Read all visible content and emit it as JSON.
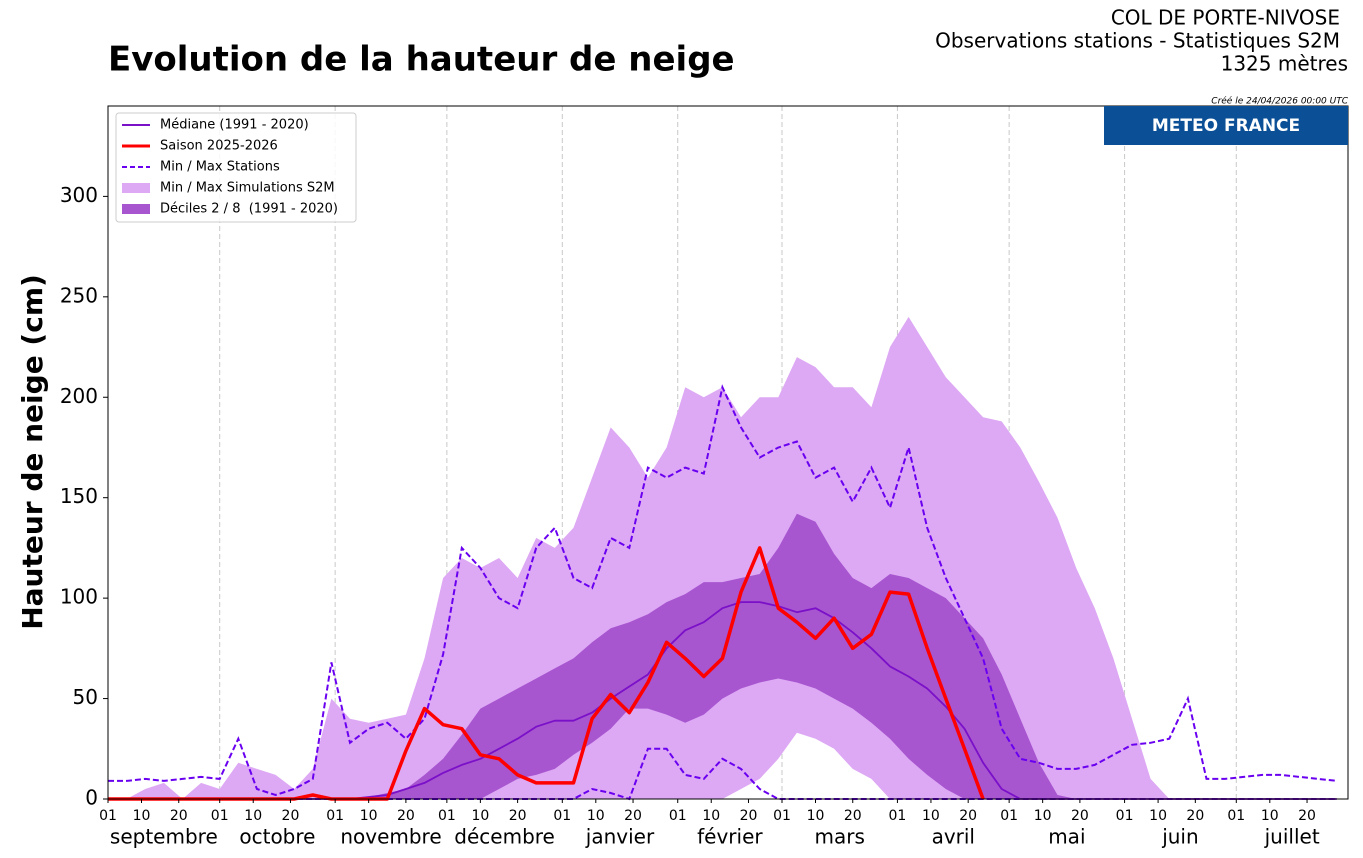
{
  "chart_data": {
    "type": "snow-envelope",
    "title": "Evolution de la hauteur de neige",
    "station": "COL DE PORTE-NIVOSE",
    "subtitle": "Observations stations - Statistiques S2M",
    "altitude": "1325 mètres",
    "created": "Créé le 24/04/2026 00:00 UTC",
    "brand": "METEO FRANCE",
    "y_label": "Hauteur de neige (cm)",
    "xlim": [
      0,
      333
    ],
    "ylim": [
      0,
      345
    ],
    "yticks": [
      0,
      50,
      100,
      150,
      200,
      250,
      300
    ],
    "xticks": [
      {
        "value": 0,
        "label": "01"
      },
      {
        "value": 9,
        "label": "10"
      },
      {
        "value": 19,
        "label": "20"
      },
      {
        "value": 30,
        "label": "01"
      },
      {
        "value": 39,
        "label": "10"
      },
      {
        "value": 49,
        "label": "20"
      },
      {
        "value": 61,
        "label": "01"
      },
      {
        "value": 70,
        "label": "10"
      },
      {
        "value": 80,
        "label": "20"
      },
      {
        "value": 91,
        "label": "01"
      },
      {
        "value": 100,
        "label": "10"
      },
      {
        "value": 110,
        "label": "20"
      },
      {
        "value": 122,
        "label": "01"
      },
      {
        "value": 131,
        "label": "10"
      },
      {
        "value": 141,
        "label": "20"
      },
      {
        "value": 153,
        "label": "01"
      },
      {
        "value": 162,
        "label": "10"
      },
      {
        "value": 172,
        "label": "20"
      },
      {
        "value": 181,
        "label": "01"
      },
      {
        "value": 190,
        "label": "10"
      },
      {
        "value": 200,
        "label": "20"
      },
      {
        "value": 212,
        "label": "01"
      },
      {
        "value": 221,
        "label": "10"
      },
      {
        "value": 231,
        "label": "20"
      },
      {
        "value": 242,
        "label": "01"
      },
      {
        "value": 251,
        "label": "10"
      },
      {
        "value": 261,
        "label": "20"
      },
      {
        "value": 273,
        "label": "01"
      },
      {
        "value": 282,
        "label": "10"
      },
      {
        "value": 292,
        "label": "20"
      },
      {
        "value": 303,
        "label": "01"
      },
      {
        "value": 312,
        "label": "10"
      },
      {
        "value": 322,
        "label": "20"
      }
    ],
    "month_labels": [
      "septembre",
      "octobre",
      "novembre",
      "décembre",
      "janvier",
      "février",
      "mars",
      "avril",
      "mai",
      "juin",
      "juillet"
    ],
    "x": [
      0,
      5,
      10,
      15,
      20,
      25,
      30,
      35,
      40,
      45,
      50,
      55,
      60,
      65,
      70,
      75,
      80,
      85,
      90,
      95,
      100,
      105,
      110,
      115,
      120,
      125,
      130,
      135,
      140,
      145,
      150,
      155,
      160,
      165,
      170,
      175,
      180,
      185,
      190,
      195,
      200,
      205,
      210,
      215,
      220,
      225,
      230,
      235,
      240,
      245,
      250,
      255,
      260,
      265,
      270,
      275,
      280,
      285,
      290,
      295,
      300,
      305,
      310,
      315,
      320,
      325,
      330
    ],
    "series": [
      {
        "name": "Médiane (1991 - 2020)",
        "color": "#7a10c8",
        "style": "line",
        "values": [
          0,
          0,
          0,
          0,
          0,
          0,
          0,
          0,
          0,
          0,
          0,
          0,
          0,
          0,
          1,
          2,
          5,
          8,
          13,
          17,
          20,
          25,
          30,
          36,
          39,
          39,
          43,
          50,
          56,
          62,
          75,
          84,
          88,
          95,
          98,
          98,
          96,
          93,
          95,
          90,
          83,
          75,
          66,
          61,
          55,
          46,
          35,
          18,
          5,
          0,
          0,
          0,
          0,
          0,
          0,
          0,
          0,
          0,
          0,
          0,
          0,
          0,
          0,
          0,
          0,
          0,
          0
        ]
      },
      {
        "name": "Saison 2025-2026",
        "color": "#ff0000",
        "style": "bold",
        "values": [
          0,
          0,
          0,
          0,
          0,
          0,
          0,
          0,
          0,
          0,
          0,
          2,
          0,
          0,
          0,
          0,
          24,
          45,
          37,
          35,
          22,
          20,
          12,
          8,
          8,
          8,
          40,
          52,
          43,
          58,
          78,
          70,
          61,
          70,
          103,
          125,
          95,
          88,
          80,
          90,
          75,
          82,
          103,
          102,
          75,
          50,
          25,
          0,
          null,
          null,
          null,
          null,
          null,
          null,
          null,
          null,
          null,
          null,
          null,
          null,
          null,
          null,
          null,
          null,
          null,
          null,
          null
        ]
      },
      {
        "name": "Min / Max Stations",
        "color": "#6a00f0",
        "style": "dashed",
        "lower": [
          0,
          0,
          0,
          0,
          0,
          0,
          0,
          0,
          0,
          0,
          0,
          0,
          0,
          0,
          0,
          0,
          0,
          0,
          0,
          0,
          0,
          0,
          0,
          0,
          0,
          0,
          5,
          3,
          0,
          25,
          25,
          12,
          10,
          20,
          15,
          5,
          0,
          0,
          0,
          0,
          0,
          0,
          0,
          0,
          0,
          0,
          0,
          0,
          0,
          0,
          0,
          0,
          0,
          0,
          0,
          0,
          0,
          0,
          0,
          0,
          0,
          0,
          0,
          0,
          0,
          0,
          0
        ],
        "upper": [
          9,
          9,
          10,
          9,
          10,
          11,
          10,
          30,
          5,
          2,
          5,
          10,
          68,
          28,
          35,
          38,
          30,
          40,
          72,
          125,
          115,
          100,
          95,
          125,
          135,
          110,
          105,
          130,
          125,
          165,
          160,
          165,
          162,
          205,
          185,
          170,
          175,
          178,
          160,
          165,
          148,
          165,
          145,
          175,
          135,
          110,
          90,
          70,
          35,
          20,
          18,
          15,
          15,
          17,
          22,
          27,
          28,
          30,
          50,
          10,
          10,
          11,
          12,
          12,
          11,
          10,
          9
        ]
      },
      {
        "name": "Min / Max Simulations S2M",
        "color": "#dda8f4",
        "style": "band",
        "lower": [
          0,
          0,
          0,
          0,
          0,
          0,
          0,
          0,
          0,
          0,
          0,
          0,
          0,
          0,
          0,
          0,
          0,
          0,
          0,
          0,
          0,
          0,
          0,
          0,
          0,
          0,
          0,
          0,
          0,
          0,
          0,
          0,
          0,
          0,
          5,
          10,
          20,
          33,
          30,
          25,
          15,
          10,
          0,
          0,
          0,
          0,
          0,
          0,
          0,
          0,
          0,
          0,
          0,
          0,
          0,
          0,
          0,
          0,
          0,
          0,
          0,
          0,
          0,
          0,
          0,
          0,
          0
        ],
        "upper": [
          0,
          0,
          5,
          8,
          0,
          8,
          5,
          18,
          15,
          12,
          5,
          15,
          50,
          40,
          38,
          40,
          42,
          70,
          110,
          120,
          115,
          120,
          110,
          130,
          125,
          135,
          160,
          185,
          175,
          160,
          175,
          205,
          200,
          205,
          190,
          200,
          200,
          220,
          215,
          205,
          205,
          195,
          225,
          240,
          225,
          210,
          200,
          190,
          188,
          175,
          158,
          140,
          115,
          95,
          70,
          40,
          10,
          0,
          0,
          0,
          0,
          0,
          0,
          0,
          0,
          0,
          0
        ]
      },
      {
        "name": "Déciles 2 / 8  (1991 - 2020)",
        "color": "#a855d0",
        "style": "band",
        "lower": [
          0,
          0,
          0,
          0,
          0,
          0,
          0,
          0,
          0,
          0,
          0,
          0,
          0,
          0,
          0,
          0,
          0,
          0,
          0,
          0,
          0,
          5,
          10,
          12,
          15,
          22,
          28,
          35,
          45,
          45,
          42,
          38,
          42,
          50,
          55,
          58,
          60,
          58,
          55,
          50,
          45,
          38,
          30,
          20,
          12,
          5,
          0,
          0,
          0,
          0,
          0,
          0,
          0,
          0,
          0,
          0,
          0,
          0,
          0,
          0,
          0,
          0,
          0,
          0,
          0,
          0,
          0
        ],
        "upper": [
          0,
          0,
          0,
          0,
          0,
          0,
          0,
          0,
          0,
          0,
          0,
          0,
          0,
          0,
          1,
          3,
          5,
          12,
          20,
          32,
          45,
          50,
          55,
          60,
          65,
          70,
          78,
          85,
          88,
          92,
          98,
          102,
          108,
          108,
          110,
          112,
          125,
          142,
          138,
          122,
          110,
          105,
          112,
          110,
          105,
          100,
          90,
          80,
          62,
          40,
          18,
          2,
          0,
          0,
          0,
          0,
          0,
          0,
          0,
          0,
          0,
          0,
          0,
          0,
          0,
          0,
          0
        ]
      }
    ]
  }
}
